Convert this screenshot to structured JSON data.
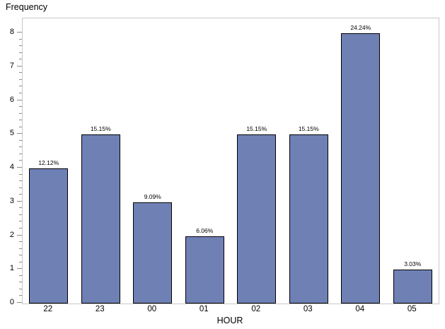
{
  "figure": {
    "y_axis_title": "Frequency",
    "x_axis_title": "HOUR"
  },
  "chart_data": {
    "type": "bar",
    "title": "",
    "ylabel": "Frequency",
    "xlabel": "HOUR",
    "categories": [
      "22",
      "23",
      "00",
      "01",
      "02",
      "03",
      "04",
      "05"
    ],
    "values": [
      4,
      5,
      3,
      2,
      5,
      5,
      8,
      1
    ],
    "bar_labels": [
      "12.12%",
      "15.15%",
      "9.09%",
      "6.06%",
      "15.15%",
      "15.15%",
      "24.24%",
      "3.03%"
    ],
    "ylim": [
      0,
      8
    ],
    "y_major_ticks": [
      0,
      1,
      2,
      3,
      4,
      5,
      6,
      7,
      8
    ],
    "y_minor_ticks_per_interval": 4,
    "grid": false,
    "legend": "none",
    "colors": {
      "bar_fill": "#6f80b5",
      "bar_border": "#000000",
      "frame": "#c8c8c8",
      "tick": "#8a8a8a",
      "text": "#000000",
      "background": "#ffffff"
    }
  }
}
